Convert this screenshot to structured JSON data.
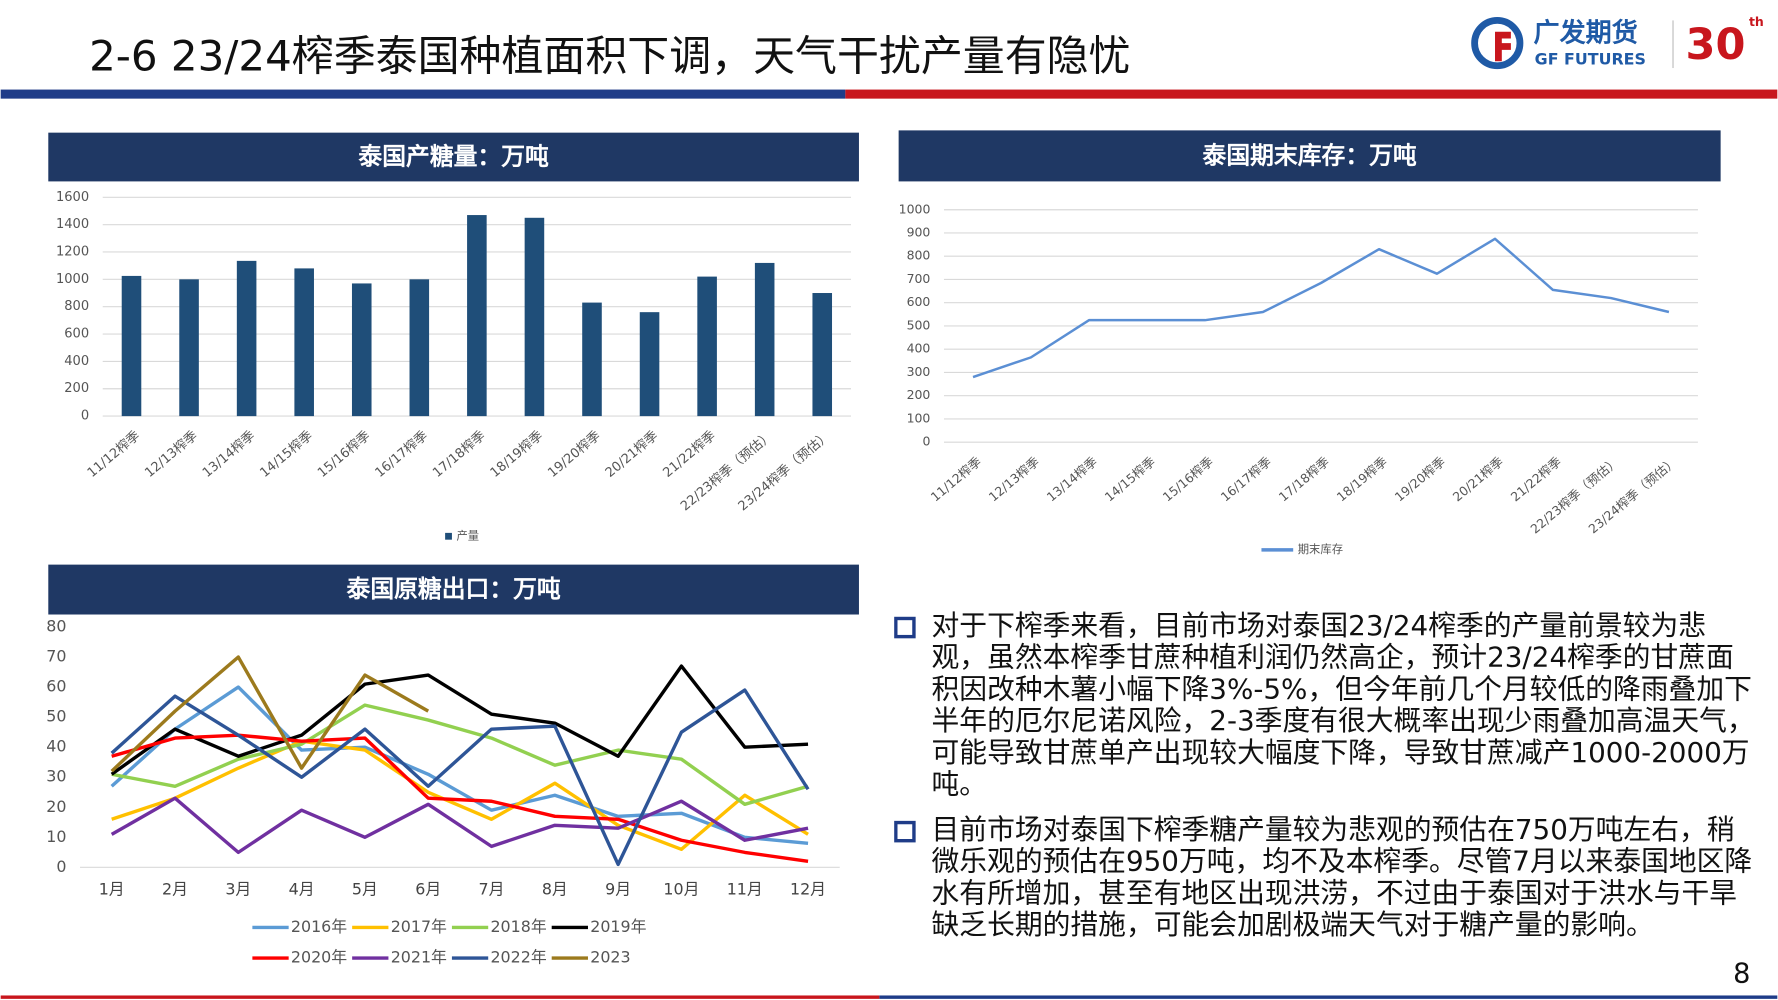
{
  "header": {
    "title": "2-6 23/24榨季泰国种植面积下调，天气干扰产量有隐忧"
  },
  "logo": {
    "name": "广发期货",
    "en": "GF FUTURES",
    "anniv": "30",
    "suffix": "th"
  },
  "chart_data": [
    {
      "type": "bar",
      "title": "泰国产糖量：万吨",
      "categories": [
        "11/12榨季",
        "12/13榨季",
        "13/14榨季",
        "14/15榨季",
        "15/16榨季",
        "16/17榨季",
        "17/18榨季",
        "18/19榨季",
        "19/20榨季",
        "20/21榨季",
        "21/22榨季",
        "22/23榨季（预估）",
        "23/24榨季（预估）"
      ],
      "series": [
        {
          "name": "产量",
          "color": "#1f4e79",
          "values": [
            1025,
            1000,
            1135,
            1080,
            970,
            1000,
            1470,
            1450,
            830,
            760,
            1020,
            1120,
            900
          ]
        }
      ],
      "ylim": [
        0,
        1600
      ],
      "yticks": [
        0,
        200,
        400,
        600,
        800,
        1000,
        1200,
        1400,
        1600
      ],
      "grid": true
    },
    {
      "type": "line",
      "title": "泰国期末库存：万吨",
      "categories": [
        "11/12榨季",
        "12/13榨季",
        "13/14榨季",
        "14/15榨季",
        "15/16榨季",
        "16/17榨季",
        "17/18榨季",
        "18/19榨季",
        "19/20榨季",
        "20/21榨季",
        "21/22榨季",
        "22/23榨季（预估）",
        "23/24榨季（预估）"
      ],
      "series": [
        {
          "name": "期末库存",
          "color": "#5b8fd4",
          "values": [
            280,
            365,
            525,
            525,
            525,
            560,
            685,
            830,
            725,
            875,
            655,
            620,
            560
          ]
        }
      ],
      "ylim": [
        0,
        1000
      ],
      "yticks": [
        0,
        100,
        200,
        300,
        400,
        500,
        600,
        700,
        800,
        900,
        1000
      ],
      "grid": true
    },
    {
      "type": "line",
      "title": "泰国原糖出口：万吨",
      "categories": [
        "1月",
        "2月",
        "3月",
        "4月",
        "5月",
        "6月",
        "7月",
        "8月",
        "9月",
        "10月",
        "11月",
        "12月"
      ],
      "series": [
        {
          "name": "2016年",
          "color": "#5b9bd5",
          "values": [
            27,
            46,
            60,
            39,
            40,
            31,
            19,
            24,
            17,
            18,
            10,
            8
          ]
        },
        {
          "name": "2017年",
          "color": "#ffc000",
          "values": [
            16,
            23,
            33,
            42,
            39,
            25,
            16,
            28,
            14,
            6,
            24,
            11
          ]
        },
        {
          "name": "2018年",
          "color": "#92d050",
          "values": [
            31,
            27,
            36,
            41,
            54,
            49,
            43,
            34,
            39,
            36,
            21,
            27
          ]
        },
        {
          "name": "2019年",
          "color": "#000000",
          "values": [
            31,
            46,
            37,
            44,
            61,
            64,
            51,
            48,
            37,
            67,
            40,
            41
          ]
        },
        {
          "name": "2020年",
          "color": "#ff0000",
          "values": [
            37,
            43,
            44,
            42,
            43,
            23,
            22,
            17,
            16,
            9,
            5,
            2
          ]
        },
        {
          "name": "2021年",
          "color": "#7030a0",
          "values": [
            11,
            23,
            5,
            19,
            10,
            21,
            7,
            14,
            13,
            22,
            9,
            13
          ]
        },
        {
          "name": "2022年",
          "color": "#2e5597",
          "values": [
            38,
            57,
            44,
            30,
            46,
            27,
            46,
            47,
            1,
            45,
            59,
            26
          ]
        },
        {
          "name": "2023",
          "color": "#9c7a1d",
          "values": [
            32,
            52,
            70,
            33,
            64,
            52,
            null,
            null,
            null,
            null,
            null,
            null
          ]
        }
      ],
      "ylim": [
        0,
        80
      ],
      "yticks": [
        0,
        10,
        20,
        30,
        40,
        50,
        60,
        70,
        80
      ],
      "grid": false
    }
  ],
  "bullets": [
    "对于下榨季来看，目前市场对泰国23/24榨季的产量前景较为悲观，虽然本榨季甘蔗种植利润仍然高企，预计23/24榨季的甘蔗面积因改种木薯小幅下降3%-5%，但今年前几个月较低的降雨叠加下半年的厄尔尼诺风险，2-3季度有很大概率出现少雨叠加高温天气，可能导致甘蔗单产出现较大幅度下降，导致甘蔗减产1000-2000万吨。",
    "目前市场对泰国下榨季糖产量较为悲观的预估在750万吨左右，稍微乐观的预估在950万吨，均不及本榨季。尽管7月以来泰国地区降水有所增加，甚至有地区出现洪涝，不过由于泰国对于洪水与干旱缺乏长期的措施，可能会加剧极端天气对于糖产量的影响。"
  ],
  "page_number": "8"
}
